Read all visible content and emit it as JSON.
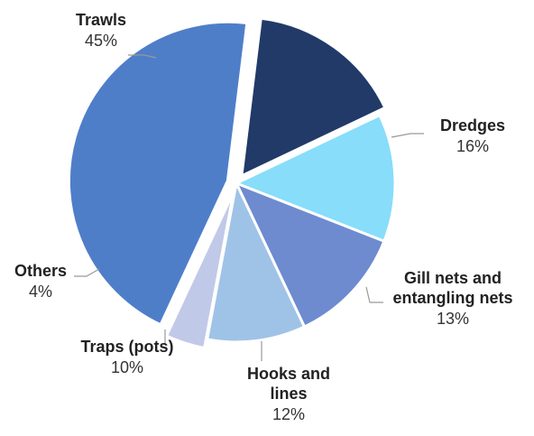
{
  "chart_data": {
    "type": "pie",
    "title": "",
    "slices": [
      {
        "name": "Trawls",
        "label_lines": [
          "Trawls"
        ],
        "value": 45,
        "value_label": "45%",
        "color": "#4f7ec9",
        "exploded": true
      },
      {
        "name": "Dredges",
        "label_lines": [
          "Dredges"
        ],
        "value": 16,
        "value_label": "16%",
        "color": "#213a68",
        "exploded": true
      },
      {
        "name": "Gill nets and entangling nets",
        "label_lines": [
          "Gill nets and",
          "entangling nets"
        ],
        "value": 13,
        "value_label": "13%",
        "color": "#87ddfa",
        "exploded": false
      },
      {
        "name": "Hooks and lines",
        "label_lines": [
          "Hooks and",
          "lines"
        ],
        "value": 12,
        "value_label": "12%",
        "color": "#6e8bd0",
        "exploded": false
      },
      {
        "name": "Traps (pots)",
        "label_lines": [
          "Traps (pots)"
        ],
        "value": 10,
        "value_label": "10%",
        "color": "#9fc3e7",
        "exploded": false
      },
      {
        "name": "Others",
        "label_lines": [
          "Others"
        ],
        "value": 4,
        "value_label": "4%",
        "color": "#c1c9e8",
        "exploded": true
      }
    ]
  }
}
